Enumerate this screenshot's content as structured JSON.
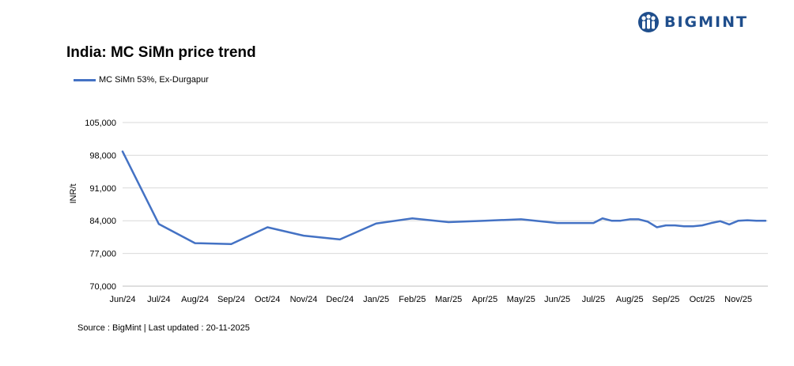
{
  "brand": {
    "name": "BIGMINT",
    "logo_icon": "bigmint-people-icon",
    "color": "#1f4e8c"
  },
  "source_text": "Source : BigMint | Last updated : 20-11-2025",
  "chart_data": {
    "type": "line",
    "title": "India: MC SiMn price trend",
    "ylabel": "INR/t",
    "xlabel": "",
    "ylim": [
      70000,
      105000
    ],
    "yticks": [
      70000,
      77000,
      84000,
      91000,
      98000,
      105000
    ],
    "ytick_labels": [
      "70,000",
      "77,000",
      "84,000",
      "91,000",
      "98,000",
      "105,000"
    ],
    "xticks": [
      "Jun/24",
      "Jul/24",
      "Aug/24",
      "Sep/24",
      "Oct/24",
      "Nov/24",
      "Dec/24",
      "Jan/25",
      "Feb/25",
      "Mar/25",
      "Apr/25",
      "May/25",
      "Jun/25",
      "Jul/25",
      "Aug/25",
      "Sep/25",
      "Oct/25",
      "Nov/25"
    ],
    "grid": "horizontal",
    "legend_position": "top-left",
    "series": [
      {
        "name": "MC SiMn 53%, Ex-Durgapur",
        "color": "#4472c4",
        "x": [
          0,
          1,
          2,
          3,
          4,
          5,
          6,
          7,
          8,
          9,
          10,
          11,
          12,
          13,
          13.25,
          13.5,
          13.75,
          14,
          14.25,
          14.5,
          14.75,
          15,
          15.25,
          15.5,
          15.75,
          16,
          16.25,
          16.5,
          16.75,
          17,
          17.25,
          17.5,
          17.75
        ],
        "values": [
          98800,
          83300,
          79200,
          79000,
          82600,
          80800,
          80000,
          83400,
          84500,
          83700,
          84000,
          84300,
          83500,
          83500,
          84500,
          84000,
          84000,
          84300,
          84300,
          83800,
          82600,
          83000,
          83000,
          82800,
          82800,
          83000,
          83500,
          83900,
          83200,
          84000,
          84100,
          84000,
          84000
        ]
      }
    ]
  }
}
